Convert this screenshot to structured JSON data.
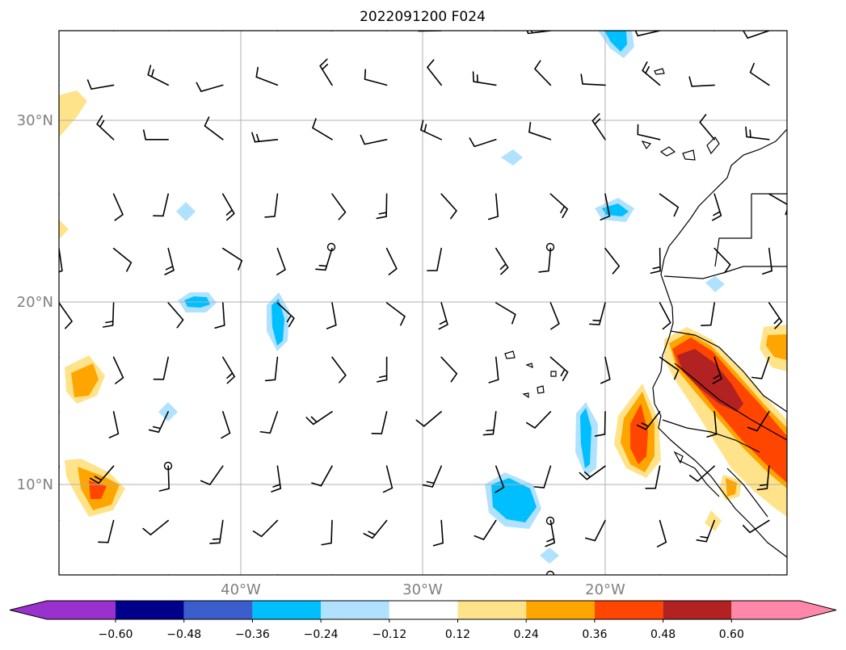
{
  "title": "2022091200 F024",
  "lat_labels": [
    "30°N",
    "20°N",
    "10°N"
  ],
  "lon_labels": [
    "40°W",
    "30°W",
    "20°W"
  ],
  "colorbar": {
    "ticks": [
      "−0.60",
      "−0.48",
      "−0.36",
      "−0.24",
      "−0.12",
      "0.12",
      "0.24",
      "0.36",
      "0.48",
      "0.60"
    ],
    "colors": [
      "#9932cc",
      "#00008b",
      "#3a5fcd",
      "#00bfff",
      "#b0e2ff",
      "#ffffff",
      "#ffe38a",
      "#ffa500",
      "#ff4500",
      "#b22222",
      "#ff88aa"
    ],
    "extend": "both"
  },
  "map": {
    "lon_range": [
      -50,
      -10
    ],
    "lat_range": [
      5,
      35
    ],
    "gridlines": true,
    "features": [
      "coastlines",
      "borders",
      "wind-barbs",
      "filled-contours"
    ]
  }
}
